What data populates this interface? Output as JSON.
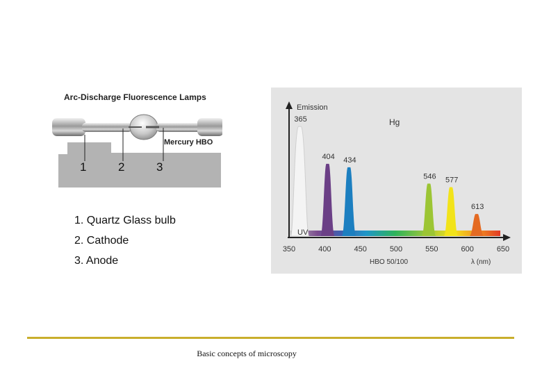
{
  "lamp": {
    "title": "Arc-Discharge Fluorescence Lamps",
    "caption": "Mercury HBO",
    "numbers": [
      "1",
      "2",
      "3"
    ]
  },
  "legend": [
    "1. Quartz Glass bulb",
    "2. Cathode",
    "3. Anode"
  ],
  "chart_data": {
    "type": "area",
    "ylabel": "Emission",
    "element_label": "Hg",
    "xlabel": "HBO 50/100",
    "x_unit_label": "λ (nm)",
    "region_label": "UV",
    "xlim": [
      350,
      650
    ],
    "x_ticks": [
      "350",
      "400",
      "450",
      "500",
      "550",
      "600",
      "650"
    ],
    "peaks": [
      {
        "wavelength": 365,
        "label": "365",
        "relative_intensity": 0.94,
        "color": "#f4f4f4"
      },
      {
        "wavelength": 404,
        "label": "404",
        "relative_intensity": 0.62,
        "color": "#6b3f86"
      },
      {
        "wavelength": 434,
        "label": "434",
        "relative_intensity": 0.59,
        "color": "#1c7fc0"
      },
      {
        "wavelength": 546,
        "label": "546",
        "relative_intensity": 0.45,
        "color": "#9cc534"
      },
      {
        "wavelength": 577,
        "label": "577",
        "relative_intensity": 0.42,
        "color": "#f2e31a"
      },
      {
        "wavelength": 613,
        "label": "613",
        "relative_intensity": 0.19,
        "color": "#e46a22"
      }
    ],
    "baseline": 0.03
  },
  "footer": {
    "text": "Basic concepts of microscopy"
  }
}
